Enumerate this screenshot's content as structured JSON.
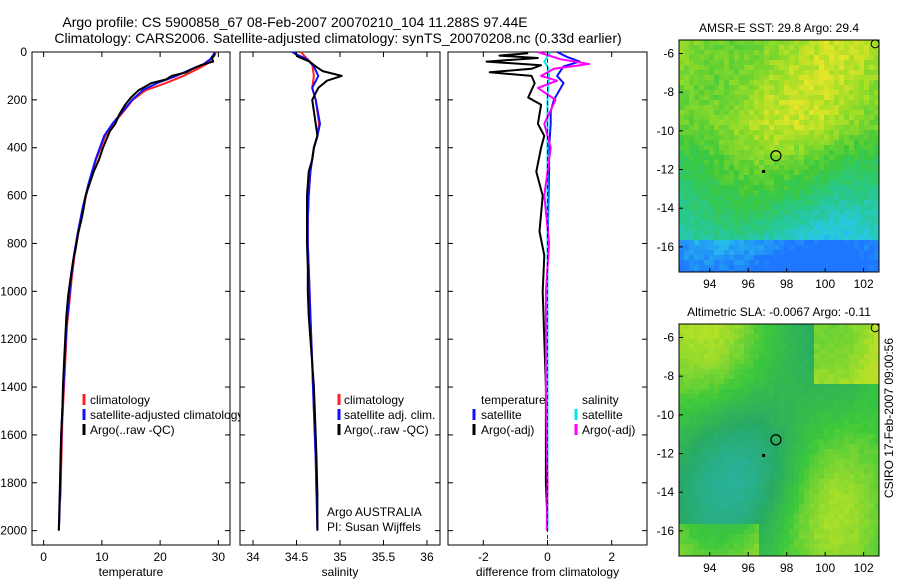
{
  "title": {
    "line1": "Argo profile: CS 5900858_67 08-Feb-2007 20070210_104 11.288S 97.44E",
    "line2": "Climatology: CARS2006. Satellite-adjusted climatology: synTS_20070208.nc (0.33d earlier)"
  },
  "footer": {
    "credit": "CSIRO 17-Feb-2007 09:00:56",
    "argo_org": "Argo AUSTRALIA",
    "pi": "PI: Susan Wijffels"
  },
  "colors": {
    "climatology": "#ff2020",
    "satellite": "#1010ff",
    "argo": "#000000",
    "salinity_satellite": "#00e5ee",
    "salinity_argo": "#ff00ff"
  },
  "chart_data": [
    {
      "id": "temperature",
      "type": "line",
      "xlabel": "temperature",
      "ylabel": "",
      "xlim": [
        -2,
        32
      ],
      "ylim": [
        0,
        2060
      ],
      "y_reversed": true,
      "xticks": [
        0,
        10,
        20,
        30
      ],
      "yticks": [
        0,
        200,
        400,
        600,
        800,
        1000,
        1200,
        1400,
        1600,
        1800,
        2000
      ],
      "legend": {
        "position": "lower-right",
        "entries": [
          "climatology",
          "satellite-adjusted climatology",
          "Argo(..raw -QC)"
        ]
      },
      "series": [
        {
          "name": "climatology",
          "color": "#ff2020",
          "x": [
            29.6,
            29.4,
            28.8,
            28.0,
            26.5,
            24.0,
            21.0,
            17.5,
            15.3,
            13.7,
            12.0,
            10.6,
            9.0,
            7.8,
            6.8,
            6.0,
            5.3,
            4.8,
            4.4,
            4.0,
            3.8,
            3.6,
            3.4,
            3.2,
            3.1,
            3.0,
            2.9,
            2.8
          ],
          "y": [
            0,
            10,
            30,
            50,
            70,
            100,
            130,
            160,
            200,
            250,
            300,
            350,
            450,
            550,
            650,
            750,
            850,
            950,
            1050,
            1150,
            1250,
            1350,
            1450,
            1550,
            1650,
            1750,
            1850,
            1880
          ]
        },
        {
          "name": "satellite-adjusted climatology",
          "color": "#1010ff",
          "x": [
            29.4,
            29.2,
            28.6,
            27.5,
            25.5,
            22.8,
            19.5,
            17.0,
            15.2,
            13.5,
            11.8,
            10.4,
            8.9,
            7.7,
            6.7,
            5.9,
            5.2,
            4.7,
            4.3,
            3.9,
            3.7,
            3.5,
            3.3,
            3.1,
            3.0,
            2.9,
            2.8,
            2.7,
            2.6
          ],
          "y": [
            0,
            10,
            30,
            50,
            70,
            100,
            130,
            160,
            200,
            250,
            300,
            350,
            450,
            550,
            650,
            750,
            850,
            950,
            1050,
            1150,
            1250,
            1350,
            1450,
            1550,
            1650,
            1750,
            1850,
            1950,
            2000
          ]
        },
        {
          "name": "Argo(..raw -QC)",
          "color": "#000000",
          "x": [
            29.3,
            29.3,
            28.9,
            29.1,
            27.0,
            25.6,
            24.5,
            22.0,
            21.0,
            18.5,
            16.3,
            15.0,
            14.0,
            13.0,
            12.3,
            11.4,
            10.7,
            10.2,
            9.5,
            8.6,
            7.9,
            7.2,
            6.9,
            6.5,
            5.9,
            5.5,
            5.0,
            4.6,
            4.2,
            3.9,
            3.7,
            3.5,
            3.3,
            3.2,
            3.0,
            2.9,
            2.8,
            2.7,
            2.6
          ],
          "y": [
            5,
            15,
            25,
            40,
            55,
            70,
            85,
            100,
            115,
            130,
            160,
            190,
            220,
            260,
            300,
            330,
            370,
            400,
            450,
            500,
            550,
            600,
            650,
            700,
            760,
            820,
            880,
            950,
            1020,
            1100,
            1200,
            1300,
            1400,
            1500,
            1600,
            1700,
            1800,
            1900,
            2000
          ]
        }
      ]
    },
    {
      "id": "salinity",
      "type": "line",
      "xlabel": "salinity",
      "ylabel": "",
      "xlim": [
        33.85,
        36.15
      ],
      "ylim": [
        0,
        2060
      ],
      "y_reversed": true,
      "xticks": [
        34,
        34.5,
        35,
        35.5,
        36
      ],
      "legend": {
        "position": "lower-right",
        "entries": [
          "climatology",
          "satellite adj. clim.",
          "Argo(..raw -QC)"
        ]
      },
      "series": [
        {
          "name": "climatology",
          "color": "#ff2020",
          "x": [
            34.55,
            34.6,
            34.68,
            34.7,
            34.68,
            34.72,
            34.76,
            34.74,
            34.7,
            34.66,
            34.64,
            34.63,
            34.63,
            34.64,
            34.65,
            34.66,
            34.67,
            34.68,
            34.69,
            34.7,
            34.71,
            34.72,
            34.73
          ],
          "y": [
            0,
            20,
            50,
            100,
            150,
            200,
            300,
            350,
            400,
            500,
            600,
            700,
            800,
            900,
            1000,
            1100,
            1200,
            1300,
            1400,
            1500,
            1600,
            1700,
            1850
          ]
        },
        {
          "name": "satellite adj. clim.",
          "color": "#1010ff",
          "x": [
            34.45,
            34.5,
            34.62,
            34.7,
            34.75,
            34.68,
            34.72,
            34.77,
            34.74,
            34.7,
            34.66,
            34.64,
            34.63,
            34.63,
            34.64,
            34.65,
            34.66,
            34.67,
            34.68,
            34.69,
            34.7,
            34.71,
            34.72,
            34.73,
            34.74
          ],
          "y": [
            0,
            10,
            30,
            60,
            100,
            150,
            200,
            300,
            350,
            400,
            500,
            600,
            700,
            800,
            900,
            1000,
            1100,
            1200,
            1300,
            1400,
            1500,
            1600,
            1700,
            1850,
            2000
          ]
        },
        {
          "name": "Argo(..raw -QC)",
          "color": "#000000",
          "x": [
            34.48,
            34.52,
            34.65,
            34.72,
            34.8,
            35.02,
            34.85,
            34.75,
            34.68,
            34.72,
            34.74,
            34.7,
            34.68,
            34.64,
            34.62,
            34.62,
            34.62,
            34.63,
            34.63,
            34.64,
            34.66,
            34.68,
            34.7,
            34.72,
            34.73,
            34.74,
            34.74
          ],
          "y": [
            5,
            20,
            40,
            60,
            80,
            100,
            120,
            150,
            200,
            300,
            350,
            400,
            450,
            500,
            600,
            700,
            800,
            900,
            1000,
            1100,
            1200,
            1300,
            1400,
            1600,
            1700,
            1850,
            2000
          ]
        }
      ]
    },
    {
      "id": "difference",
      "type": "line",
      "xlabel": "difference from climatology",
      "ylabel": "",
      "xlim": [
        -3.1,
        3.1
      ],
      "ylim": [
        0,
        2060
      ],
      "y_reversed": true,
      "xticks": [
        -2,
        0,
        2
      ],
      "legend": {
        "position": "lower-right",
        "entries": [
          "temperature",
          "satellite",
          "Argo(-adj)",
          "salinity",
          "satellite",
          "Argo(-adj)"
        ]
      },
      "series": [
        {
          "name": "temperature satellite",
          "color": "#1010ff",
          "x": [
            0.3,
            0.6,
            1.0,
            0.5,
            0.3,
            0.5,
            0.2,
            0.1,
            0.1,
            0.05,
            0.05,
            0.02,
            0.0,
            0.0,
            -0.02,
            -0.02
          ],
          "y": [
            0,
            20,
            40,
            60,
            100,
            130,
            200,
            250,
            300,
            400,
            500,
            700,
            900,
            1200,
            1600,
            2000
          ]
        },
        {
          "name": "temperature Argo(-adj)",
          "color": "#000000",
          "x": [
            -0.6,
            -1.5,
            -0.3,
            -1.9,
            -0.2,
            -0.5,
            -1.8,
            -0.5,
            -0.4,
            -0.6,
            -0.2,
            -0.3,
            -0.1,
            -0.2,
            -0.35,
            -0.15,
            -0.25,
            -0.1,
            -0.15,
            -0.1,
            -0.05,
            -0.05,
            -0.05,
            -0.02
          ],
          "y": [
            5,
            15,
            25,
            40,
            55,
            70,
            85,
            100,
            130,
            190,
            220,
            300,
            350,
            400,
            500,
            600,
            750,
            850,
            1000,
            1200,
            1400,
            1600,
            1800,
            1900
          ]
        },
        {
          "name": "salinity satellite",
          "color": "#00e5ee",
          "x": [
            0.1,
            -0.1,
            0.0,
            0.05,
            0.02,
            0.0,
            0.0,
            0.0,
            0.0,
            0.0,
            0.0,
            0.0,
            0.0,
            0.0,
            0.0
          ],
          "y": [
            0,
            40,
            60,
            100,
            150,
            200,
            300,
            400,
            600,
            800,
            1000,
            1200,
            1500,
            1800,
            2000
          ]
        },
        {
          "name": "salinity Argo(-adj)",
          "color": "#ff00ff",
          "x": [
            -0.3,
            0.4,
            1.3,
            0.2,
            -0.2,
            0.3,
            -0.3,
            0.25,
            -0.1,
            0.1,
            -0.1,
            0.05,
            -0.05,
            -0.05,
            0.0,
            -0.02
          ],
          "y": [
            0,
            30,
            50,
            70,
            100,
            120,
            150,
            200,
            300,
            400,
            600,
            800,
            1000,
            1400,
            1800,
            2000
          ]
        }
      ]
    },
    {
      "id": "amsr_map",
      "type": "heatmap",
      "title": "AMSR-E SST: 29.8  Argo: 29.4",
      "xlim": [
        92.4,
        102.8
      ],
      "ylim": [
        -17.3,
        -5.3
      ],
      "xticks": [
        94,
        96,
        98,
        100,
        102
      ],
      "yticks": [
        -6,
        -8,
        -10,
        -12,
        -14,
        -16
      ],
      "argo_position": {
        "lon": 97.44,
        "lat": -11.288
      },
      "marker_dot": {
        "lon": 96.8,
        "lat": -12.1
      },
      "corner_marker": {
        "lon": 102.6,
        "lat": -5.5
      },
      "colormap": "sst_green_blue"
    },
    {
      "id": "sla_map",
      "type": "heatmap",
      "title": "Altimetric SLA: -0.0067  Argo: -0.11",
      "xlim": [
        92.4,
        102.8
      ],
      "ylim": [
        -17.3,
        -5.3
      ],
      "xticks": [
        94,
        96,
        98,
        100,
        102
      ],
      "yticks": [
        -6,
        -8,
        -10,
        -12,
        -14,
        -16
      ],
      "argo_position": {
        "lon": 97.44,
        "lat": -11.288
      },
      "marker_dot": {
        "lon": 96.8,
        "lat": -12.1
      },
      "corner_marker": {
        "lon": 102.6,
        "lat": -5.5
      },
      "colormap": "sla_green_yellow"
    }
  ]
}
